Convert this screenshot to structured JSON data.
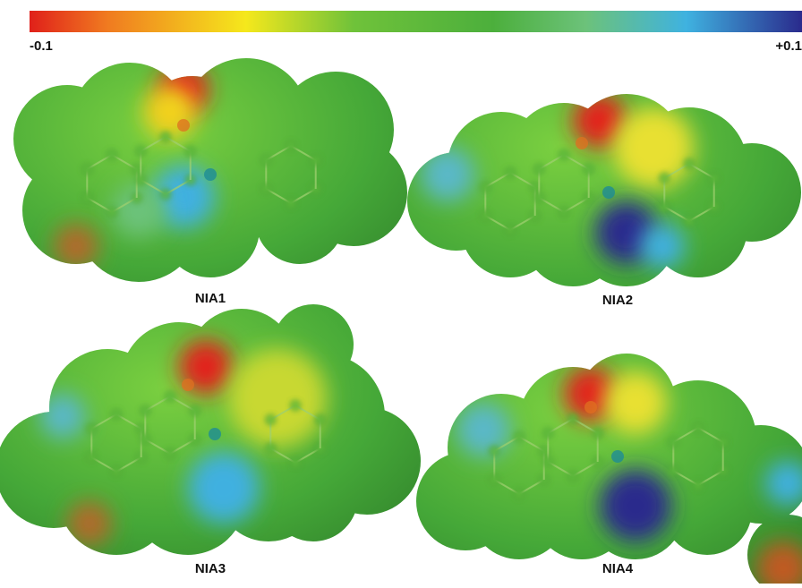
{
  "colorbar": {
    "min_label": "-0.1",
    "max_label": "+0.1"
  },
  "panels": [
    {
      "label": "NIA1"
    },
    {
      "label": "NIA2"
    },
    {
      "label": "NIA3"
    },
    {
      "label": "NIA4"
    }
  ]
}
